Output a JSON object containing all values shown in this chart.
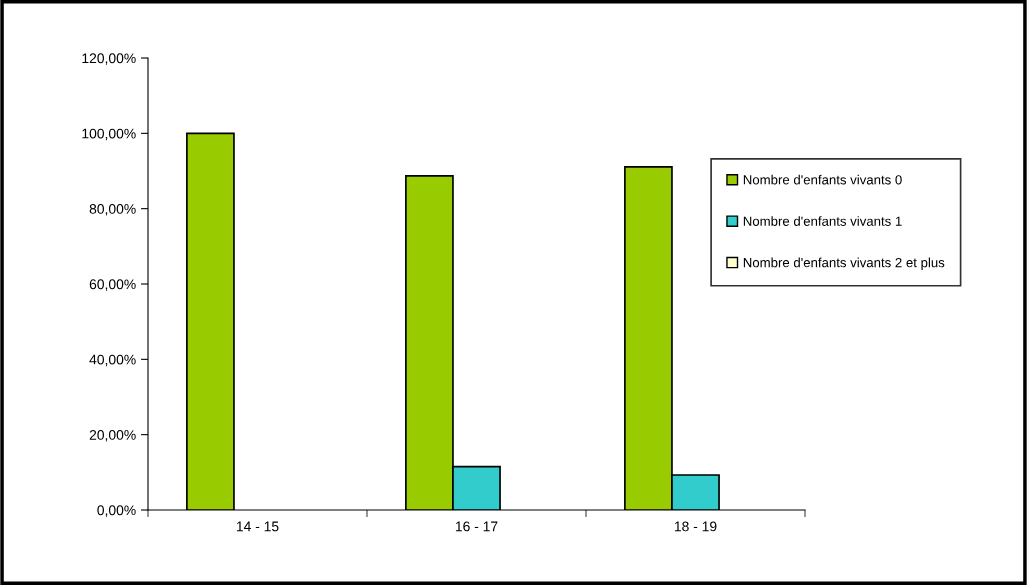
{
  "chart_data": {
    "type": "bar",
    "categories": [
      "14 - 15",
      "16 - 17",
      "18 - 19"
    ],
    "series": [
      {
        "name": "Nombre d'enfants vivants 0",
        "color": "#99cc00",
        "values": [
          100,
          88.7,
          91.1
        ]
      },
      {
        "name": "Nombre d'enfants vivants 1",
        "color": "#33cccc",
        "values": [
          0,
          11.5,
          9.3
        ]
      },
      {
        "name": "Nombre d'enfants vivants 2 et plus",
        "color": "#ffffcc",
        "values": [
          0,
          0,
          0
        ]
      }
    ],
    "ylim": [
      0,
      120
    ],
    "yticks": [
      {
        "value": 0,
        "label": "0,00%"
      },
      {
        "value": 20,
        "label": "20,00%"
      },
      {
        "value": 40,
        "label": "40,00%"
      },
      {
        "value": 60,
        "label": "60,00%"
      },
      {
        "value": 80,
        "label": "80,00%"
      },
      {
        "value": 100,
        "label": "100,00%"
      },
      {
        "value": 120,
        "label": "120,00%"
      }
    ],
    "grid": false,
    "legend": "right"
  }
}
